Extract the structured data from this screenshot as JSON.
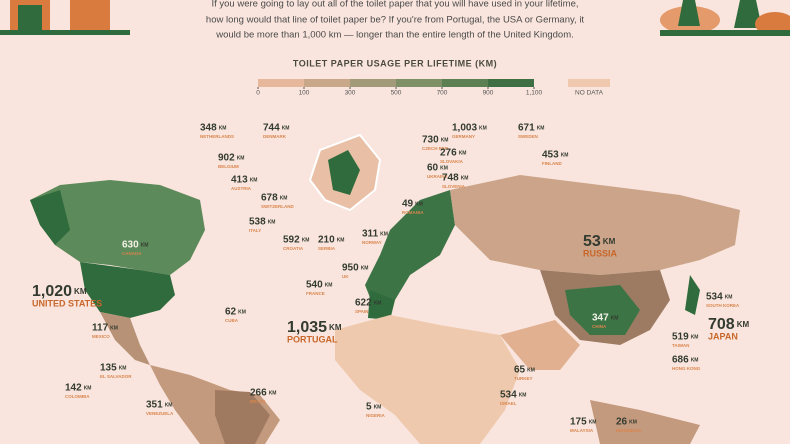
{
  "header": {
    "intro": [
      "If you were going to lay out all of the toilet paper that you will have used in your lifetime,",
      "how long would that line of toilet paper be? If you're from Portugal, the USA or Germany, it",
      "would be more than 1,000 km — longer than the entire length of the United Kingdom."
    ]
  },
  "legend": {
    "title": "TOILET PAPER USAGE PER LIFETIME (KM)",
    "ticks": [
      0,
      100,
      300,
      500,
      700,
      900,
      {
        "value": 1100,
        "label": "1,100"
      }
    ],
    "no_data": "NO DATA"
  },
  "unit": "KM",
  "countries": [
    {
      "name": "NETHERLANDS",
      "value": 348
    },
    {
      "name": "DENMARK",
      "value": 744
    },
    {
      "name": "BELGIUM",
      "value": 902
    },
    {
      "name": "AUSTRIA",
      "value": 413
    },
    {
      "name": "SWITZERLAND",
      "value": 678
    },
    {
      "name": "ITALY",
      "value": 538
    },
    {
      "name": "CROATIA",
      "value": 592
    },
    {
      "name": "SERBIA",
      "value": 210
    },
    {
      "name": "CZECH REP.",
      "value": 730
    },
    {
      "name": "GERMANY",
      "value": 1003,
      "label": "1,003"
    },
    {
      "name": "SLOVAKIA",
      "value": 276
    },
    {
      "name": "UKRAINE",
      "value": 60
    },
    {
      "name": "SLOVENIA",
      "value": 748
    },
    {
      "name": "ROMANIA",
      "value": 49
    },
    {
      "name": "NORWAY",
      "value": 311
    },
    {
      "name": "SWEDEN",
      "value": 671
    },
    {
      "name": "FINLAND",
      "value": 453
    },
    {
      "name": "RUSSIA",
      "value": 53
    },
    {
      "name": "CANADA",
      "value": 630
    },
    {
      "name": "UNITED STATES",
      "value": 1020,
      "label": "1,020"
    },
    {
      "name": "MEXICO",
      "value": 117
    },
    {
      "name": "CUBA",
      "value": 62
    },
    {
      "name": "UK",
      "value": 950
    },
    {
      "name": "FRANCE",
      "value": 540
    },
    {
      "name": "SPAIN",
      "value": 622
    },
    {
      "name": "PORTUGAL",
      "value": 1035,
      "label": "1,035"
    },
    {
      "name": "EL SALVADOR",
      "value": 135
    },
    {
      "name": "COLOMBIA",
      "value": 142
    },
    {
      "name": "VENEZUELA",
      "value": 351
    },
    {
      "name": "BRAZIL",
      "value": 266
    },
    {
      "name": "NIGERIA",
      "value": 5
    },
    {
      "name": "TURKEY",
      "value": 65
    },
    {
      "name": "ISRAEL",
      "value": 534
    },
    {
      "name": "CHINA",
      "value": 347
    },
    {
      "name": "SOUTH KOREA",
      "value": 534
    },
    {
      "name": "JAPAN",
      "value": 708
    },
    {
      "name": "TAIWAN",
      "value": 519
    },
    {
      "name": "HONG KONG",
      "value": 686
    },
    {
      "name": "MALAYSIA",
      "value": 175
    },
    {
      "name": "INDONESIA",
      "value": 26
    }
  ]
}
